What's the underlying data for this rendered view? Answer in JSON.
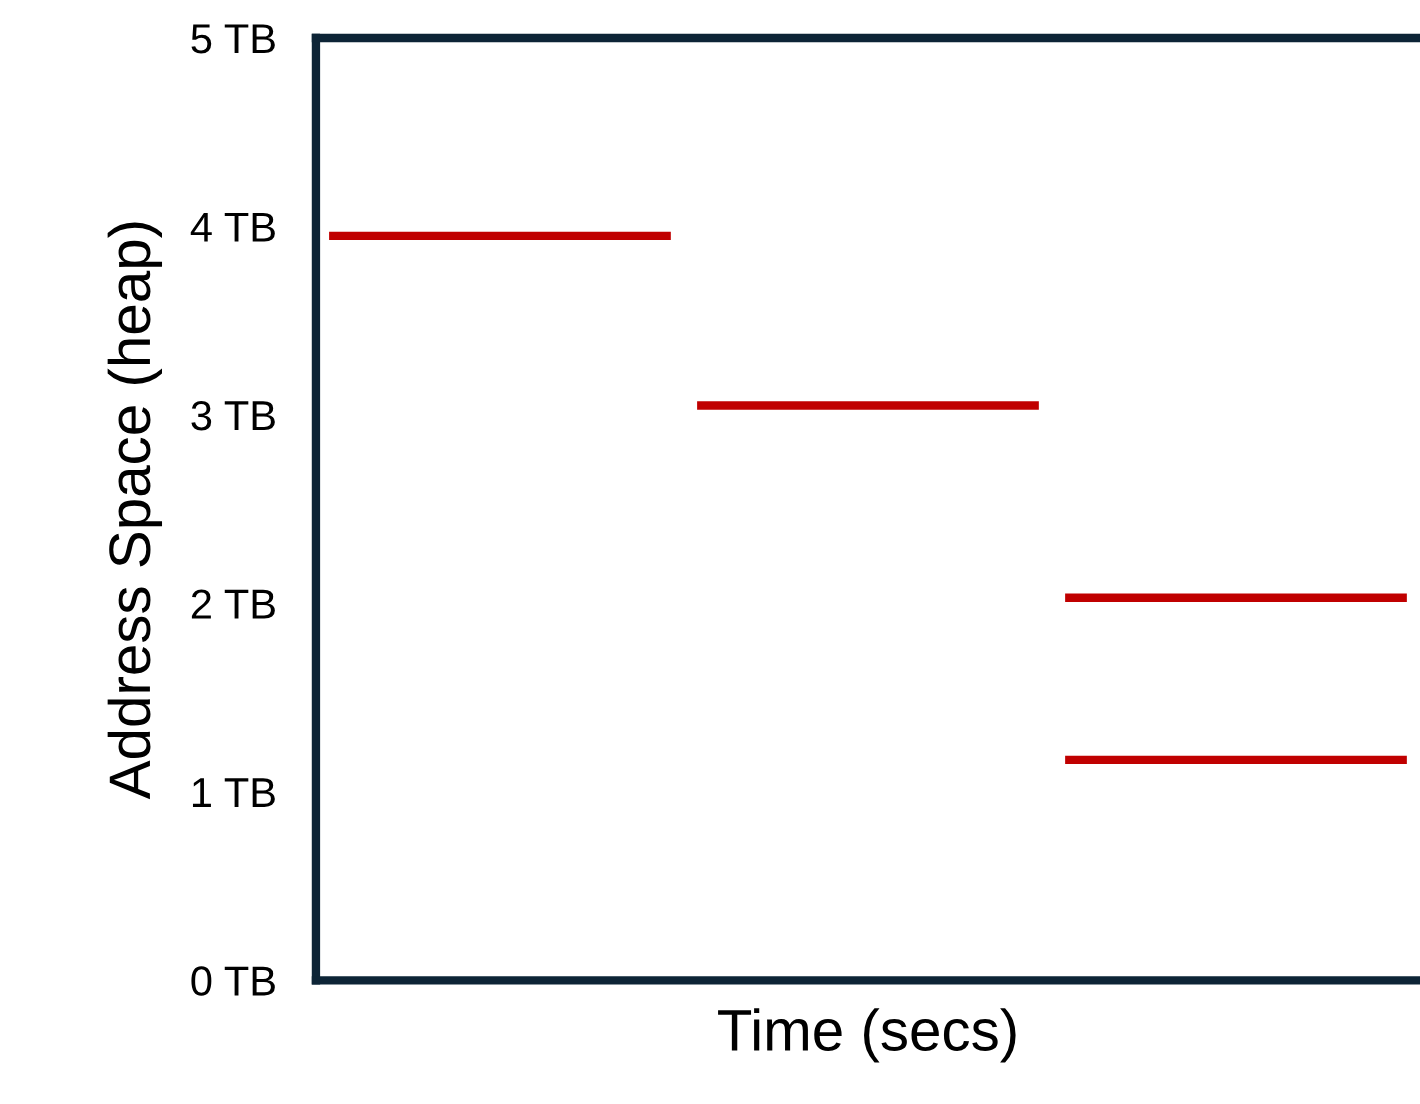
{
  "chart_data": {
    "type": "line",
    "xlabel": "Time (secs)",
    "ylabel": "Address Space (heap)",
    "categories": [
      null,
      null,
      null,
      null,
      null,
      null,
      null,
      null,
      null,
      null,
      null,
      null,
      null,
      null,
      null,
      null,
      null,
      null,
      null,
      null,
      null,
      null,
      null,
      null,
      null,
      null,
      null,
      null,
      null,
      null,
      null,
      null,
      null,
      null,
      null,
      null,
      null,
      null,
      null,
      null,
      null,
      null
    ],
    "series": [
      {
        "color": "#c00000",
        "values": [
          3.95,
          3.95,
          3.95,
          3.95,
          3.95,
          3.95,
          3.95,
          3.95,
          3.95,
          3.95,
          3.95,
          3.95,
          3.95,
          3.95,
          null,
          null,
          null,
          null,
          null,
          null,
          null,
          null,
          null,
          null,
          null,
          null,
          null,
          null,
          null,
          null,
          null,
          null,
          null,
          null,
          null,
          null,
          null,
          null,
          null,
          null,
          null,
          null
        ]
      },
      {
        "color": "#c00000",
        "values": [
          null,
          null,
          null,
          null,
          null,
          null,
          null,
          null,
          null,
          null,
          null,
          null,
          null,
          null,
          3.05,
          3.05,
          3.05,
          3.05,
          3.05,
          3.05,
          3.05,
          3.05,
          3.05,
          3.05,
          3.05,
          3.05,
          3.05,
          3.05,
          null,
          null,
          null,
          null,
          null,
          null,
          null,
          null,
          null,
          null,
          null,
          null,
          null,
          null
        ]
      },
      {
        "color": "#c00000",
        "values": [
          null,
          null,
          null,
          null,
          null,
          null,
          null,
          null,
          null,
          null,
          null,
          null,
          null,
          null,
          null,
          null,
          null,
          null,
          null,
          null,
          null,
          null,
          null,
          null,
          null,
          null,
          null,
          null,
          2.03,
          2.03,
          2.03,
          2.03,
          2.03,
          2.03,
          2.03,
          2.03,
          2.03,
          2.03,
          2.03,
          2.03,
          2.03,
          2.03
        ]
      },
      {
        "color": "#c00000",
        "values": [
          null,
          null,
          null,
          null,
          null,
          null,
          null,
          null,
          null,
          null,
          null,
          null,
          null,
          null,
          null,
          null,
          null,
          null,
          null,
          null,
          null,
          null,
          null,
          null,
          null,
          null,
          null,
          null,
          1.17,
          1.17,
          1.17,
          1.17,
          1.17,
          1.17,
          1.17,
          1.17,
          1.17,
          1.17,
          1.17,
          1.17,
          1.17,
          1.17
        ]
      }
    ],
    "ylim": [
      0,
      5
    ],
    "yticks": [
      {
        "value": 0,
        "label": "0 TB"
      },
      {
        "value": 1,
        "label": "1 TB"
      },
      {
        "value": 2,
        "label": "2 TB"
      },
      {
        "value": 3,
        "label": "3 TB"
      },
      {
        "value": 4,
        "label": "4 TB"
      },
      {
        "value": 5,
        "label": "5 TB"
      }
    ],
    "grid": false,
    "tick_labels": "y"
  }
}
